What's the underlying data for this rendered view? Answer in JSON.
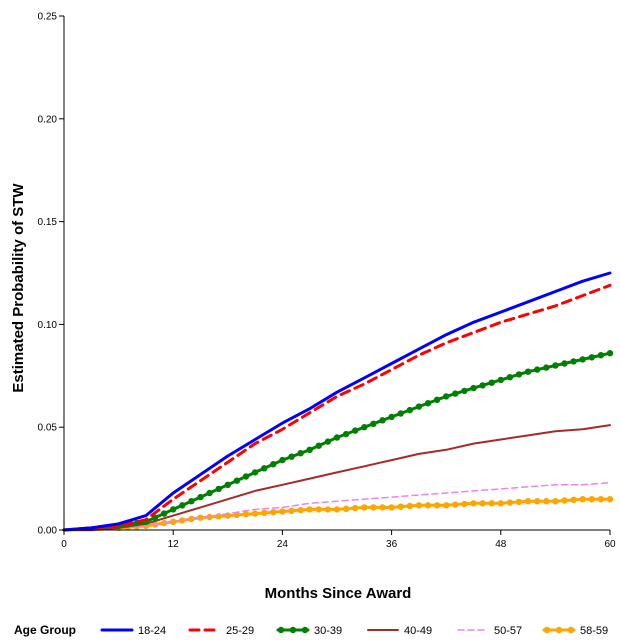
{
  "chart_data": {
    "type": "line",
    "title": "",
    "xlabel": "Months Since Award",
    "ylabel": "Estimated Probability of STW",
    "xlim": [
      0,
      60
    ],
    "ylim": [
      0,
      0.25
    ],
    "x_ticks": [
      0,
      12,
      24,
      36,
      48,
      60
    ],
    "x_tick_labels": [
      "0",
      "12",
      "24",
      "36",
      "48",
      "60"
    ],
    "y_ticks": [
      0,
      0.05,
      0.1,
      0.15,
      0.2,
      0.25
    ],
    "y_tick_labels": [
      "0.00",
      "0.05",
      "0.10",
      "0.15",
      "0.20",
      "0.25"
    ],
    "grid": false,
    "legend": {
      "title": "Age Group",
      "position": "bottom"
    },
    "x": [
      0,
      3,
      6,
      9,
      12,
      15,
      18,
      21,
      24,
      27,
      30,
      33,
      36,
      39,
      42,
      45,
      48,
      51,
      54,
      57,
      60
    ],
    "series": [
      {
        "name": "18-24",
        "color": "#0000ff",
        "style": "solid",
        "values": [
          0.0,
          0.001,
          0.003,
          0.007,
          0.018,
          0.027,
          0.036,
          0.044,
          0.052,
          0.059,
          0.067,
          0.074,
          0.081,
          0.088,
          0.095,
          0.101,
          0.106,
          0.111,
          0.116,
          0.121,
          0.125
        ]
      },
      {
        "name": "25-29",
        "color": "#ff0000",
        "style": "dashed",
        "values": [
          0.0,
          0.001,
          0.002,
          0.005,
          0.015,
          0.024,
          0.033,
          0.042,
          0.049,
          0.057,
          0.065,
          0.071,
          0.078,
          0.085,
          0.091,
          0.096,
          0.101,
          0.105,
          0.109,
          0.114,
          0.119
        ]
      },
      {
        "name": "30-39",
        "color": "#008000",
        "style": "solid-markers",
        "values": [
          0.0,
          0.001,
          0.002,
          0.004,
          0.01,
          0.016,
          0.022,
          0.028,
          0.034,
          0.039,
          0.045,
          0.05,
          0.055,
          0.06,
          0.065,
          0.069,
          0.073,
          0.077,
          0.08,
          0.083,
          0.086
        ]
      },
      {
        "name": "40-49",
        "color": "#a52a2a",
        "style": "solid",
        "values": [
          0.0,
          0.0,
          0.001,
          0.003,
          0.007,
          0.011,
          0.015,
          0.019,
          0.022,
          0.025,
          0.028,
          0.031,
          0.034,
          0.037,
          0.039,
          0.042,
          0.044,
          0.046,
          0.048,
          0.049,
          0.051
        ]
      },
      {
        "name": "50-57",
        "color": "#ee82ee",
        "style": "dashed",
        "values": [
          0.0,
          0.0,
          0.001,
          0.002,
          0.004,
          0.006,
          0.008,
          0.01,
          0.011,
          0.013,
          0.014,
          0.015,
          0.016,
          0.017,
          0.018,
          0.019,
          0.02,
          0.021,
          0.022,
          0.022,
          0.023
        ]
      },
      {
        "name": "58-59",
        "color": "#ffa500",
        "style": "solid-markers",
        "values": [
          0.0,
          0.0,
          0.001,
          0.002,
          0.004,
          0.006,
          0.007,
          0.008,
          0.009,
          0.01,
          0.01,
          0.011,
          0.011,
          0.012,
          0.012,
          0.013,
          0.013,
          0.014,
          0.014,
          0.015,
          0.015
        ]
      }
    ]
  }
}
